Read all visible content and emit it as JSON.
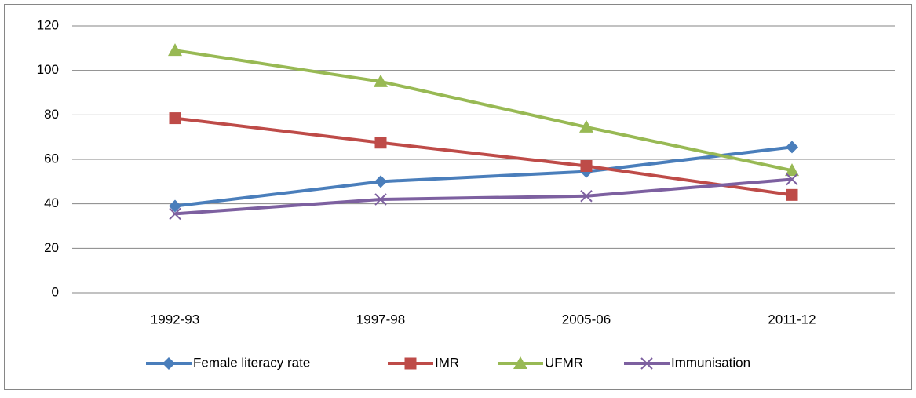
{
  "chart_data": {
    "type": "line",
    "categories": [
      "1992-93",
      "1997-98",
      "2005-06",
      "2011-12"
    ],
    "series": [
      {
        "name": "Female literacy rate",
        "color": "#4a7ebb",
        "marker": "diamond",
        "values": [
          39,
          50,
          54.5,
          65.5
        ]
      },
      {
        "name": "IMR",
        "color": "#be4b48",
        "marker": "square",
        "values": [
          78.5,
          67.5,
          57,
          44
        ]
      },
      {
        "name": "UFMR",
        "color": "#98b954",
        "marker": "triangle",
        "values": [
          109,
          95,
          74.5,
          55
        ]
      },
      {
        "name": "Immunisation",
        "color": "#7d60a0",
        "marker": "x",
        "values": [
          35.5,
          42,
          43.5,
          51
        ]
      }
    ],
    "ylim": [
      0,
      120
    ],
    "yticks": [
      0,
      20,
      40,
      60,
      80,
      100,
      120
    ],
    "grid": true,
    "legend": "bottom"
  }
}
